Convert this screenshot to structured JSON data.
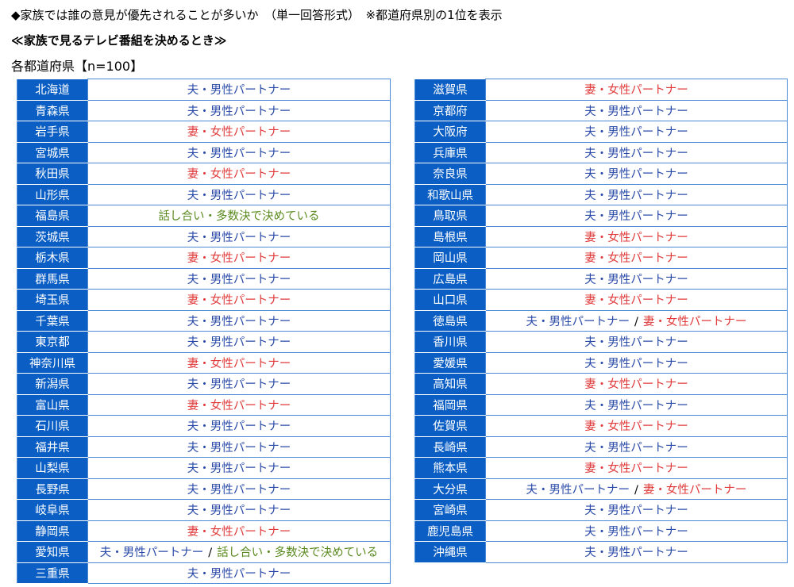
{
  "header": {
    "question": "◆家族では誰の意見が優先されることが多いか　（単一回答形式）　※都道府県別の1位を表示",
    "subtitle": "≪家族で見るテレビ番組を決めるとき≫",
    "sample": "各都道府県【n=100】"
  },
  "colors": {
    "prefecture_bg": "#0b5fc4",
    "husband": "#2a4aa8",
    "wife": "#e03a3a",
    "discussion": "#5a8a1e",
    "border": "#4a8ad6"
  },
  "answers": {
    "h": "夫・男性パートナー",
    "w": "妻・女性パートナー",
    "d": "話し合い・多数決で決めている",
    "sep": "/"
  },
  "left": [
    [
      "北海道",
      [
        "h"
      ]
    ],
    [
      "青森県",
      [
        "h"
      ]
    ],
    [
      "岩手県",
      [
        "w"
      ]
    ],
    [
      "宮城県",
      [
        "h"
      ]
    ],
    [
      "秋田県",
      [
        "w"
      ]
    ],
    [
      "山形県",
      [
        "h"
      ]
    ],
    [
      "福島県",
      [
        "d"
      ]
    ],
    [
      "茨城県",
      [
        "h"
      ]
    ],
    [
      "栃木県",
      [
        "w"
      ]
    ],
    [
      "群馬県",
      [
        "h"
      ]
    ],
    [
      "埼玉県",
      [
        "w"
      ]
    ],
    [
      "千葉県",
      [
        "h"
      ]
    ],
    [
      "東京都",
      [
        "h"
      ]
    ],
    [
      "神奈川県",
      [
        "w"
      ]
    ],
    [
      "新潟県",
      [
        "h"
      ]
    ],
    [
      "富山県",
      [
        "w"
      ]
    ],
    [
      "石川県",
      [
        "h"
      ]
    ],
    [
      "福井県",
      [
        "h"
      ]
    ],
    [
      "山梨県",
      [
        "h"
      ]
    ],
    [
      "長野県",
      [
        "h"
      ]
    ],
    [
      "岐阜県",
      [
        "h"
      ]
    ],
    [
      "静岡県",
      [
        "w"
      ]
    ],
    [
      "愛知県",
      [
        "h",
        "d"
      ]
    ],
    [
      "三重県",
      [
        "h"
      ]
    ]
  ],
  "right": [
    [
      "滋賀県",
      [
        "w"
      ]
    ],
    [
      "京都府",
      [
        "h"
      ]
    ],
    [
      "大阪府",
      [
        "h"
      ]
    ],
    [
      "兵庫県",
      [
        "h"
      ]
    ],
    [
      "奈良県",
      [
        "h"
      ]
    ],
    [
      "和歌山県",
      [
        "h"
      ]
    ],
    [
      "鳥取県",
      [
        "h"
      ]
    ],
    [
      "島根県",
      [
        "w"
      ]
    ],
    [
      "岡山県",
      [
        "w"
      ]
    ],
    [
      "広島県",
      [
        "h"
      ]
    ],
    [
      "山口県",
      [
        "w"
      ]
    ],
    [
      "徳島県",
      [
        "h",
        "w"
      ]
    ],
    [
      "香川県",
      [
        "h"
      ]
    ],
    [
      "愛媛県",
      [
        "h"
      ]
    ],
    [
      "高知県",
      [
        "w"
      ]
    ],
    [
      "福岡県",
      [
        "h"
      ]
    ],
    [
      "佐賀県",
      [
        "w"
      ]
    ],
    [
      "長崎県",
      [
        "h"
      ]
    ],
    [
      "熊本県",
      [
        "w"
      ]
    ],
    [
      "大分県",
      [
        "h",
        "w"
      ]
    ],
    [
      "宮崎県",
      [
        "h"
      ]
    ],
    [
      "鹿児島県",
      [
        "h"
      ]
    ],
    [
      "沖縄県",
      [
        "h"
      ]
    ]
  ]
}
